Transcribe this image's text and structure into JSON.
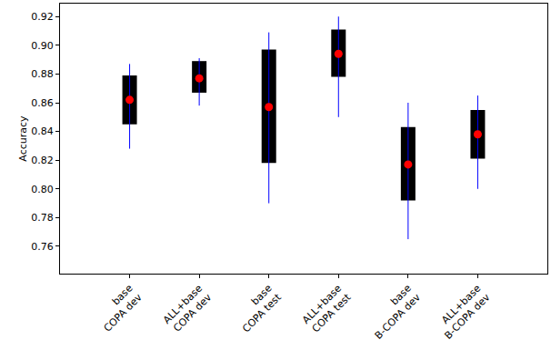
{
  "chart_data": {
    "type": "box",
    "y_label": "Accuracy",
    "categories": [
      "base\nCOPA dev",
      "ALL+base\nCOPA dev",
      "base\nCOPA test",
      "ALL+base\nCOPA test",
      "base\nB-COPA dev",
      "ALL+base\nB-COPA dev"
    ],
    "values": [
      0.862,
      0.877,
      0.857,
      0.894,
      0.817,
      0.838
    ],
    "box_low": [
      0.845,
      0.867,
      0.818,
      0.878,
      0.792,
      0.821
    ],
    "box_high": [
      0.879,
      0.889,
      0.897,
      0.911,
      0.843,
      0.855
    ],
    "whisker_low": [
      0.828,
      0.858,
      0.79,
      0.85,
      0.765,
      0.8
    ],
    "whisker_high": [
      0.887,
      0.891,
      0.909,
      0.92,
      0.86,
      0.865
    ],
    "color": "#ff0000",
    "marker": "circle",
    "ylim": [
      0.741,
      0.929
    ],
    "yticks": [
      0.76,
      0.78,
      {
        "value": 0.8,
        "label": "0.80"
      },
      0.82,
      0.84,
      0.86,
      0.88,
      {
        "value": 0.9,
        "label": "0.90"
      },
      0.92
    ],
    "grid": false
  }
}
